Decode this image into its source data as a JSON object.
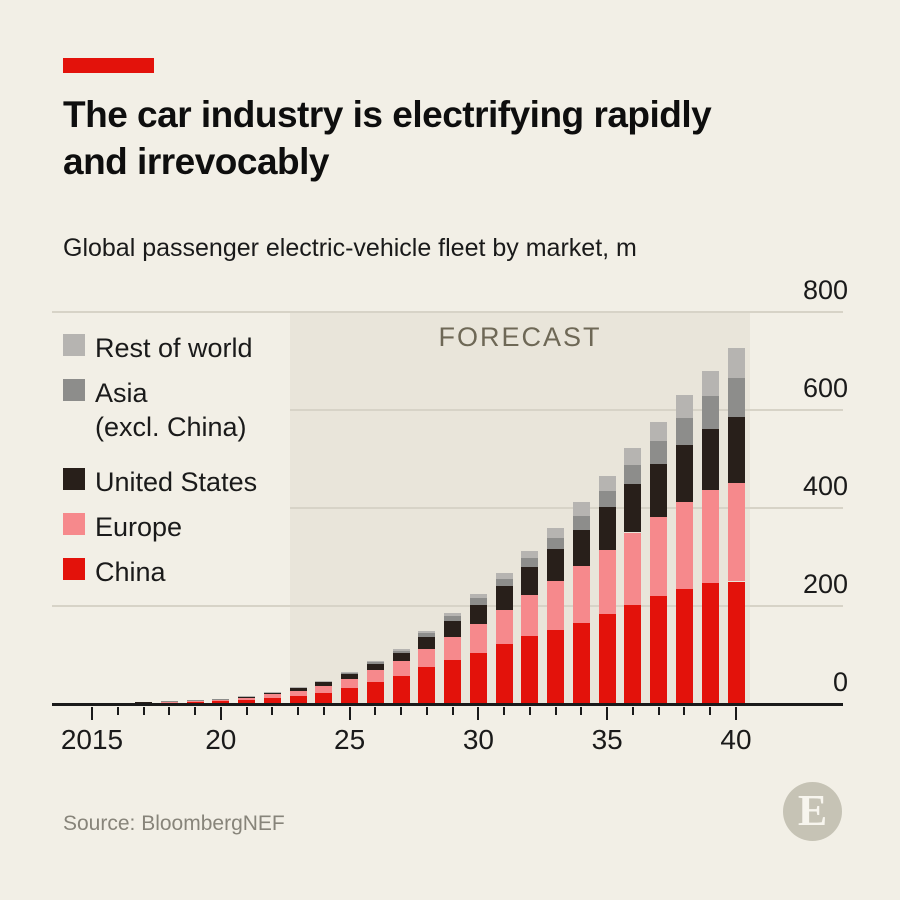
{
  "header": {
    "title": "The car industry is electrifying rapidly and irrevocably",
    "subtitle": "Global passenger electric-vehicle fleet by market, m"
  },
  "chart_data": {
    "type": "bar",
    "stacked": true,
    "title": "Global passenger electric-vehicle fleet by market, m",
    "unit": "millions of vehicles",
    "x": [
      2015,
      2016,
      2017,
      2018,
      2019,
      2020,
      2021,
      2022,
      2023,
      2024,
      2025,
      2026,
      2027,
      2028,
      2029,
      2030,
      2031,
      2032,
      2033,
      2034,
      2035,
      2036,
      2037,
      2038,
      2039,
      2040
    ],
    "x_tick_labels": [
      "2015",
      "20",
      "25",
      "30",
      "35",
      "40"
    ],
    "x_tick_years": [
      2015,
      2020,
      2025,
      2030,
      2035,
      2040
    ],
    "ylim": [
      0,
      800
    ],
    "y_ticks": [
      0,
      200,
      400,
      600,
      800
    ],
    "grid": true,
    "legend_position": "top-left",
    "forecast_label": "FORECAST",
    "forecast_start_year": 2023,
    "forecast_end_year": 2040,
    "series": [
      {
        "name": "China",
        "color": "#e3120b",
        "values": [
          0.7,
          1.0,
          1.8,
          2.8,
          4.0,
          5.5,
          8.0,
          12.5,
          17,
          23,
          33,
          45,
          57,
          75,
          90,
          105,
          122,
          138,
          152,
          166,
          184,
          202,
          220,
          235,
          246,
          250
        ]
      },
      {
        "name": "Europe",
        "color": "#f6898c",
        "values": [
          0.3,
          0.5,
          0.8,
          1.3,
          2.0,
          3.2,
          4.8,
          7.5,
          10,
          13,
          18,
          24,
          30,
          38,
          47,
          58,
          70,
          84,
          99,
          115,
          131,
          148,
          162,
          177,
          190,
          202
        ]
      },
      {
        "name": "United States",
        "color": "#281f1a",
        "values": [
          0.3,
          0.5,
          0.8,
          1.2,
          1.6,
          1.8,
          2.4,
          3.8,
          5.5,
          8,
          10,
          13,
          17,
          24,
          32,
          40,
          49,
          57,
          66,
          75,
          88,
          99,
          108,
          117,
          126,
          134
        ]
      },
      {
        "name": "Asia (excl. China)",
        "color": "#8d8d8b",
        "values": [
          0.0,
          0.0,
          0.1,
          0.2,
          0.3,
          0.4,
          0.6,
          0.9,
          1.5,
          2,
          3,
          4,
          5,
          8,
          10,
          13,
          15,
          18,
          22,
          27,
          32,
          38,
          46,
          55,
          66,
          80
        ]
      },
      {
        "name": "Rest of world",
        "color": "#b6b4b1",
        "values": [
          0.0,
          0.0,
          0.0,
          0.0,
          0.1,
          0.1,
          0.2,
          0.3,
          1.0,
          1,
          2,
          2,
          3,
          5,
          7,
          9,
          12,
          15,
          21,
          29,
          31,
          35,
          40,
          46,
          52,
          61
        ]
      }
    ],
    "totals_by_year_hint": {
      "2025": 66,
      "2030": 225,
      "2035": 466,
      "2040": 727
    }
  },
  "legend": {
    "items": [
      {
        "label_lines": [
          "Rest of world"
        ],
        "color": "#b6b4b1"
      },
      {
        "label_lines": [
          "Asia",
          "(excl. China)"
        ],
        "color": "#8d8d8b"
      },
      {
        "label_lines": [
          "United States"
        ],
        "color": "#281f1a"
      },
      {
        "label_lines": [
          "Europe"
        ],
        "color": "#f6898c"
      },
      {
        "label_lines": [
          "China"
        ],
        "color": "#e3120b"
      }
    ]
  },
  "footer": {
    "source": "Source: BloombergNEF",
    "logo_letter": "E"
  },
  "colors": {
    "background": "#f2efe6",
    "forecast_background": "#e9e5da",
    "gridline": "#d7d3c7",
    "axis": "#1a1a1a",
    "accent_red": "#e3120b",
    "title_text": "#0e0e0e",
    "muted_text": "#87847a",
    "forecast_text": "#6e6856",
    "logo_circle": "#c6c3b5"
  }
}
